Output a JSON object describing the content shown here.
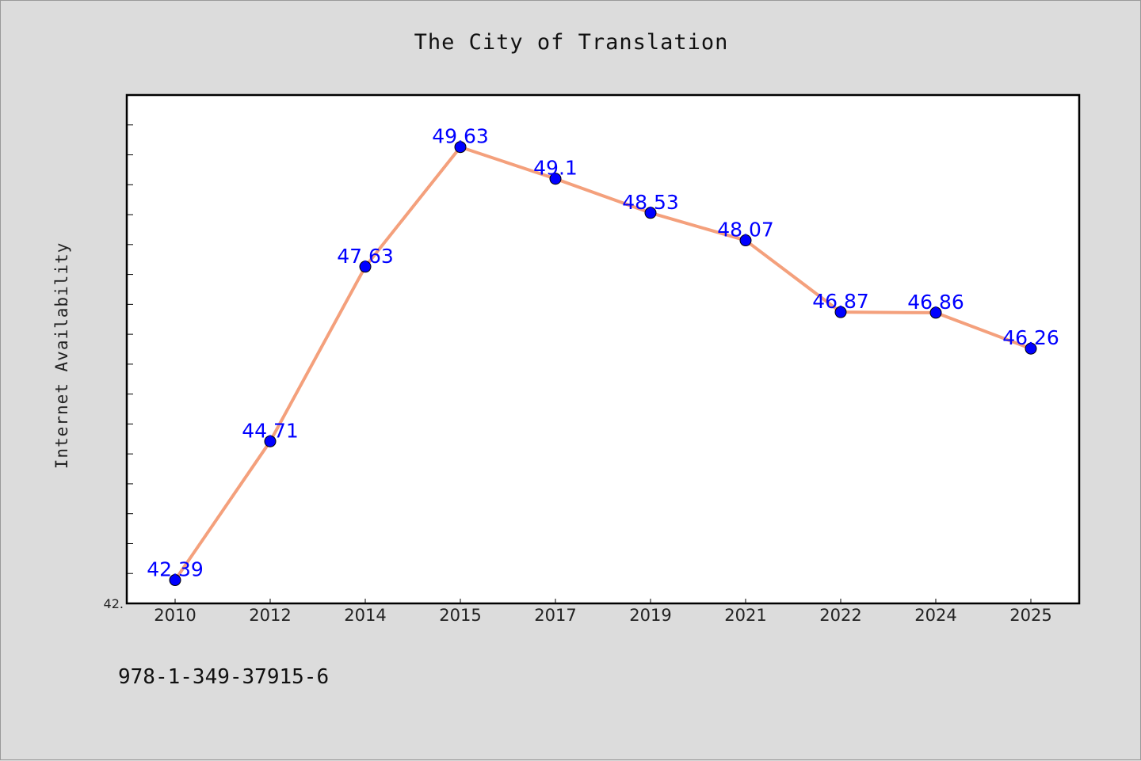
{
  "title": "The City of Translation",
  "footer_text": "978-1-349-37915-6",
  "colors": {
    "background": "#dcdcdc",
    "plot_background": "#ffffff",
    "line": "#f4a07c",
    "marker": "#0000ff",
    "label": "#0000ff"
  },
  "chart_data": {
    "type": "line",
    "title": "The City of Translation",
    "xlabel": "",
    "ylabel": "Internet Availability",
    "categories": [
      "2010",
      "2012",
      "2014",
      "2015",
      "2017",
      "2019",
      "2021",
      "2022",
      "2024",
      "2025"
    ],
    "series": [
      {
        "values": [
          42.39,
          44.71,
          47.63,
          49.63,
          49.1,
          48.53,
          48.07,
          46.87,
          46.86,
          46.26
        ]
      }
    ],
    "data_labels": [
      "42.39",
      "44.71",
      "47.63",
      "49.63",
      "49.1",
      "48.53",
      "48.07",
      "46.87",
      "46.86",
      "46.26"
    ],
    "y_tick_labels": [
      "42."
    ],
    "ylim": [
      42.0,
      50.5
    ],
    "grid": false,
    "legend": "none"
  }
}
